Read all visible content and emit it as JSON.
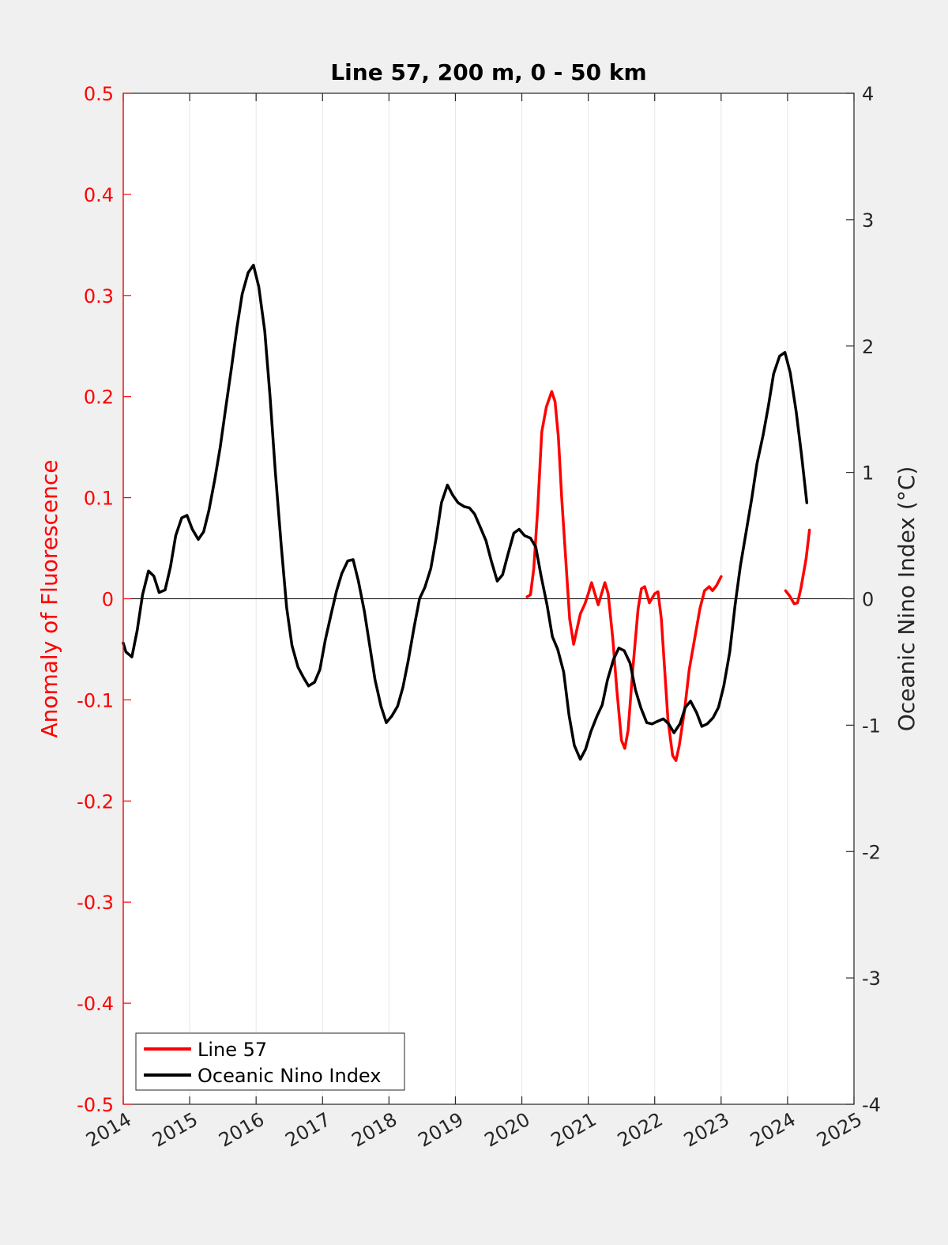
{
  "chart_data": {
    "type": "line",
    "title": "Line 57, 200 m, 0 - 50 km",
    "xlim": [
      2014,
      2025
    ],
    "x_ticks": [
      "2014",
      "2015",
      "2016",
      "2017",
      "2018",
      "2019",
      "2020",
      "2021",
      "2022",
      "2023",
      "2024",
      "2025"
    ],
    "y_left": {
      "label": "Anomaly of Fluorescence",
      "lim": [
        -0.5,
        0.5
      ],
      "ticks": [
        "0.5",
        "0.4",
        "0.3",
        "0.2",
        "0.1",
        "0",
        "-0.1",
        "-0.2",
        "-0.3",
        "-0.4",
        "-0.5"
      ],
      "color": "#ff0000"
    },
    "y_right": {
      "label": "Oceanic Nino Index (°C)",
      "lim": [
        -4,
        4
      ],
      "ticks": [
        "4",
        "3",
        "2",
        "1",
        "0",
        "-1",
        "-2",
        "-3",
        "-4"
      ],
      "color": "#000000"
    },
    "zero_line": true,
    "grid_x": true,
    "legend": {
      "placement": "bottom-left",
      "entries": [
        {
          "label": "Line 57",
          "color": "#ff0000"
        },
        {
          "label": "Oceanic Nino Index",
          "color": "#000000"
        }
      ]
    },
    "series": [
      {
        "name": "Line 57",
        "axis": "left",
        "color": "#ff0000",
        "segments": [
          [
            [
              2020.08,
              0.002
            ],
            [
              2020.13,
              0.004
            ],
            [
              2020.18,
              0.03
            ],
            [
              2020.24,
              0.09
            ],
            [
              2020.3,
              0.165
            ],
            [
              2020.37,
              0.19
            ],
            [
              2020.45,
              0.205
            ],
            [
              2020.5,
              0.195
            ],
            [
              2020.55,
              0.16
            ],
            [
              2020.6,
              0.1
            ],
            [
              2020.66,
              0.04
            ],
            [
              2020.72,
              -0.02
            ],
            [
              2020.78,
              -0.045
            ],
            [
              2020.83,
              -0.03
            ],
            [
              2020.88,
              -0.015
            ],
            [
              2020.95,
              -0.005
            ],
            [
              2021.0,
              0.005
            ],
            [
              2021.05,
              0.016
            ],
            [
              2021.1,
              0.005
            ],
            [
              2021.15,
              -0.006
            ],
            [
              2021.2,
              0.005
            ],
            [
              2021.25,
              0.016
            ],
            [
              2021.3,
              0.005
            ],
            [
              2021.37,
              -0.04
            ],
            [
              2021.43,
              -0.09
            ],
            [
              2021.5,
              -0.14
            ],
            [
              2021.55,
              -0.148
            ],
            [
              2021.6,
              -0.13
            ],
            [
              2021.67,
              -0.07
            ],
            [
              2021.75,
              -0.01
            ],
            [
              2021.8,
              0.01
            ],
            [
              2021.85,
              0.012
            ],
            [
              2021.92,
              -0.004
            ],
            [
              2022.0,
              0.005
            ],
            [
              2022.05,
              0.007
            ],
            [
              2022.1,
              -0.02
            ],
            [
              2022.15,
              -0.07
            ],
            [
              2022.2,
              -0.12
            ],
            [
              2022.27,
              -0.155
            ],
            [
              2022.32,
              -0.16
            ],
            [
              2022.37,
              -0.145
            ],
            [
              2022.45,
              -0.11
            ],
            [
              2022.52,
              -0.07
            ],
            [
              2022.6,
              -0.04
            ],
            [
              2022.68,
              -0.01
            ],
            [
              2022.75,
              0.008
            ],
            [
              2022.82,
              0.012
            ],
            [
              2022.87,
              0.008
            ],
            [
              2022.93,
              0.013
            ],
            [
              2023.0,
              0.022
            ]
          ],
          [
            [
              2023.97,
              0.008
            ],
            [
              2024.03,
              0.003
            ],
            [
              2024.1,
              -0.005
            ],
            [
              2024.15,
              -0.004
            ],
            [
              2024.2,
              0.01
            ],
            [
              2024.28,
              0.04
            ],
            [
              2024.33,
              0.068
            ]
          ]
        ]
      },
      {
        "name": "Oceanic Nino Index",
        "axis": "right",
        "color": "#000000",
        "segments": [
          [
            [
              2014.0,
              -0.35
            ],
            [
              2014.04,
              -0.42
            ],
            [
              2014.13,
              -0.46
            ],
            [
              2014.21,
              -0.25
            ],
            [
              2014.29,
              0.03
            ],
            [
              2014.38,
              0.22
            ],
            [
              2014.46,
              0.18
            ],
            [
              2014.54,
              0.05
            ],
            [
              2014.63,
              0.07
            ],
            [
              2014.71,
              0.25
            ],
            [
              2014.79,
              0.5
            ],
            [
              2014.88,
              0.64
            ],
            [
              2014.96,
              0.66
            ],
            [
              2015.04,
              0.55
            ],
            [
              2015.13,
              0.47
            ],
            [
              2015.21,
              0.53
            ],
            [
              2015.29,
              0.7
            ],
            [
              2015.38,
              0.95
            ],
            [
              2015.46,
              1.2
            ],
            [
              2015.54,
              1.5
            ],
            [
              2015.63,
              1.83
            ],
            [
              2015.71,
              2.14
            ],
            [
              2015.79,
              2.41
            ],
            [
              2015.88,
              2.58
            ],
            [
              2015.96,
              2.64
            ],
            [
              2016.04,
              2.47
            ],
            [
              2016.13,
              2.12
            ],
            [
              2016.21,
              1.6
            ],
            [
              2016.29,
              1.0
            ],
            [
              2016.38,
              0.41
            ],
            [
              2016.46,
              -0.07
            ],
            [
              2016.54,
              -0.37
            ],
            [
              2016.63,
              -0.54
            ],
            [
              2016.71,
              -0.62
            ],
            [
              2016.79,
              -0.69
            ],
            [
              2016.88,
              -0.66
            ],
            [
              2016.96,
              -0.56
            ],
            [
              2017.04,
              -0.33
            ],
            [
              2017.13,
              -0.12
            ],
            [
              2017.21,
              0.06
            ],
            [
              2017.29,
              0.2
            ],
            [
              2017.38,
              0.3
            ],
            [
              2017.46,
              0.31
            ],
            [
              2017.54,
              0.14
            ],
            [
              2017.63,
              -0.1
            ],
            [
              2017.71,
              -0.37
            ],
            [
              2017.79,
              -0.64
            ],
            [
              2017.88,
              -0.85
            ],
            [
              2017.96,
              -0.98
            ],
            [
              2018.04,
              -0.93
            ],
            [
              2018.13,
              -0.85
            ],
            [
              2018.21,
              -0.7
            ],
            [
              2018.29,
              -0.49
            ],
            [
              2018.38,
              -0.22
            ],
            [
              2018.46,
              0.0
            ],
            [
              2018.54,
              0.09
            ],
            [
              2018.63,
              0.24
            ],
            [
              2018.71,
              0.48
            ],
            [
              2018.79,
              0.76
            ],
            [
              2018.88,
              0.9
            ],
            [
              2018.96,
              0.82
            ],
            [
              2019.04,
              0.76
            ],
            [
              2019.13,
              0.73
            ],
            [
              2019.21,
              0.72
            ],
            [
              2019.29,
              0.67
            ],
            [
              2019.38,
              0.56
            ],
            [
              2019.46,
              0.46
            ],
            [
              2019.54,
              0.3
            ],
            [
              2019.63,
              0.14
            ],
            [
              2019.71,
              0.19
            ],
            [
              2019.79,
              0.35
            ],
            [
              2019.88,
              0.52
            ],
            [
              2019.96,
              0.55
            ],
            [
              2020.04,
              0.5
            ],
            [
              2020.13,
              0.48
            ],
            [
              2020.21,
              0.41
            ],
            [
              2020.29,
              0.18
            ],
            [
              2020.38,
              -0.05
            ],
            [
              2020.46,
              -0.3
            ],
            [
              2020.54,
              -0.4
            ],
            [
              2020.63,
              -0.58
            ],
            [
              2020.71,
              -0.92
            ],
            [
              2020.79,
              -1.16
            ],
            [
              2020.88,
              -1.27
            ],
            [
              2020.96,
              -1.19
            ],
            [
              2021.04,
              -1.05
            ],
            [
              2021.13,
              -0.93
            ],
            [
              2021.21,
              -0.84
            ],
            [
              2021.29,
              -0.64
            ],
            [
              2021.38,
              -0.48
            ],
            [
              2021.46,
              -0.39
            ],
            [
              2021.54,
              -0.41
            ],
            [
              2021.63,
              -0.51
            ],
            [
              2021.71,
              -0.72
            ],
            [
              2021.79,
              -0.86
            ],
            [
              2021.88,
              -0.98
            ],
            [
              2021.96,
              -0.99
            ],
            [
              2022.04,
              -0.97
            ],
            [
              2022.13,
              -0.95
            ],
            [
              2022.21,
              -0.99
            ],
            [
              2022.29,
              -1.06
            ],
            [
              2022.38,
              -0.99
            ],
            [
              2022.46,
              -0.86
            ],
            [
              2022.54,
              -0.81
            ],
            [
              2022.63,
              -0.9
            ],
            [
              2022.71,
              -1.01
            ],
            [
              2022.79,
              -0.99
            ],
            [
              2022.88,
              -0.94
            ],
            [
              2022.96,
              -0.86
            ],
            [
              2023.04,
              -0.69
            ],
            [
              2023.13,
              -0.42
            ],
            [
              2023.21,
              -0.05
            ],
            [
              2023.29,
              0.26
            ],
            [
              2023.38,
              0.54
            ],
            [
              2023.46,
              0.79
            ],
            [
              2023.54,
              1.07
            ],
            [
              2023.63,
              1.29
            ],
            [
              2023.71,
              1.52
            ],
            [
              2023.79,
              1.78
            ],
            [
              2023.88,
              1.92
            ],
            [
              2023.96,
              1.95
            ],
            [
              2024.04,
              1.79
            ],
            [
              2024.13,
              1.48
            ],
            [
              2024.21,
              1.14
            ],
            [
              2024.29,
              0.76
            ]
          ]
        ]
      }
    ]
  }
}
